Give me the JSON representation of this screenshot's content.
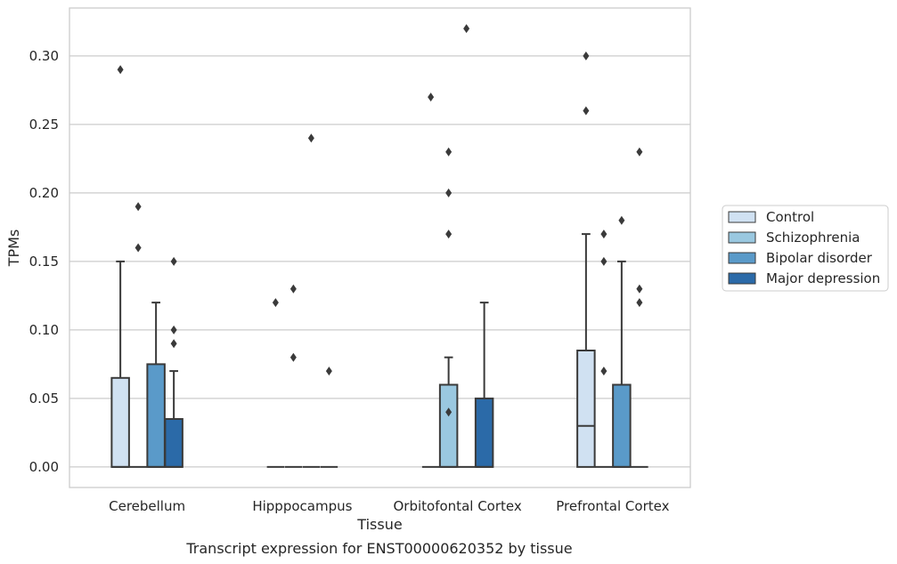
{
  "caption": "Transcript expression for ENST00000620352 by tissue",
  "chart_data": {
    "type": "box",
    "xlabel": "Tissue",
    "ylabel": "TPMs",
    "categories": [
      "Cerebellum",
      "Hipppocampus",
      "Orbitofontal Cortex",
      "Prefrontal Cortex"
    ],
    "ylim": [
      -0.015,
      0.335
    ],
    "yticks": [
      0.0,
      0.05,
      0.1,
      0.15,
      0.2,
      0.25,
      0.3
    ],
    "ytick_labels": [
      "0.00",
      "0.05",
      "0.10",
      "0.15",
      "0.20",
      "0.25",
      "0.30"
    ],
    "grid": "horizontal",
    "legend_position": "right-outside",
    "series": [
      {
        "name": "Control",
        "color": "#d0e1f2",
        "boxes": [
          {
            "q1": 0.0,
            "median": 0.0,
            "q3": 0.065,
            "whisker_low": 0.0,
            "whisker_high": 0.15,
            "outliers": [
              0.29
            ]
          },
          {
            "q1": 0.0,
            "median": 0.0,
            "q3": 0.0,
            "whisker_low": 0.0,
            "whisker_high": 0.0,
            "outliers": [
              0.12
            ]
          },
          {
            "q1": 0.0,
            "median": 0.0,
            "q3": 0.0,
            "whisker_low": 0.0,
            "whisker_high": 0.0,
            "outliers": [
              0.27
            ]
          },
          {
            "q1": 0.0,
            "median": 0.03,
            "q3": 0.085,
            "whisker_low": 0.0,
            "whisker_high": 0.17,
            "outliers": [
              0.3,
              0.26
            ]
          }
        ]
      },
      {
        "name": "Schizophrenia",
        "color": "#9ac8e0",
        "boxes": [
          {
            "q1": 0.0,
            "median": 0.0,
            "q3": 0.0,
            "whisker_low": 0.0,
            "whisker_high": 0.0,
            "outliers": [
              0.19,
              0.16
            ]
          },
          {
            "q1": 0.0,
            "median": 0.0,
            "q3": 0.0,
            "whisker_low": 0.0,
            "whisker_high": 0.0,
            "outliers": [
              0.13,
              0.08
            ]
          },
          {
            "q1": 0.0,
            "median": 0.0,
            "q3": 0.06,
            "whisker_low": 0.0,
            "whisker_high": 0.08,
            "outliers": [
              0.04,
              0.23,
              0.2,
              0.17
            ]
          },
          {
            "q1": 0.0,
            "median": 0.0,
            "q3": 0.0,
            "whisker_low": 0.0,
            "whisker_high": 0.0,
            "outliers": [
              0.17,
              0.15,
              0.07
            ]
          }
        ]
      },
      {
        "name": "Bipolar disorder",
        "color": "#5a9ac9",
        "boxes": [
          {
            "q1": 0.0,
            "median": 0.0,
            "q3": 0.075,
            "whisker_low": 0.0,
            "whisker_high": 0.12,
            "outliers": []
          },
          {
            "q1": 0.0,
            "median": 0.0,
            "q3": 0.0,
            "whisker_low": 0.0,
            "whisker_high": 0.0,
            "outliers": [
              0.24
            ]
          },
          {
            "q1": 0.0,
            "median": 0.0,
            "q3": 0.0,
            "whisker_low": 0.0,
            "whisker_high": 0.0,
            "outliers": [
              0.32
            ]
          },
          {
            "q1": 0.0,
            "median": 0.0,
            "q3": 0.06,
            "whisker_low": 0.0,
            "whisker_high": 0.15,
            "outliers": [
              0.18
            ]
          }
        ]
      },
      {
        "name": "Major depression",
        "color": "#2b6aa8",
        "boxes": [
          {
            "q1": 0.0,
            "median": 0.0,
            "q3": 0.035,
            "whisker_low": 0.0,
            "whisker_high": 0.07,
            "outliers": [
              0.15,
              0.1,
              0.09
            ]
          },
          {
            "q1": 0.0,
            "median": 0.0,
            "q3": 0.0,
            "whisker_low": 0.0,
            "whisker_high": 0.0,
            "outliers": [
              0.07
            ]
          },
          {
            "q1": 0.0,
            "median": 0.0,
            "q3": 0.05,
            "whisker_low": 0.0,
            "whisker_high": 0.12,
            "outliers": []
          },
          {
            "q1": 0.0,
            "median": 0.0,
            "q3": 0.0,
            "whisker_low": 0.0,
            "whisker_high": 0.0,
            "outliers": [
              0.23,
              0.13,
              0.12
            ]
          }
        ]
      }
    ]
  }
}
